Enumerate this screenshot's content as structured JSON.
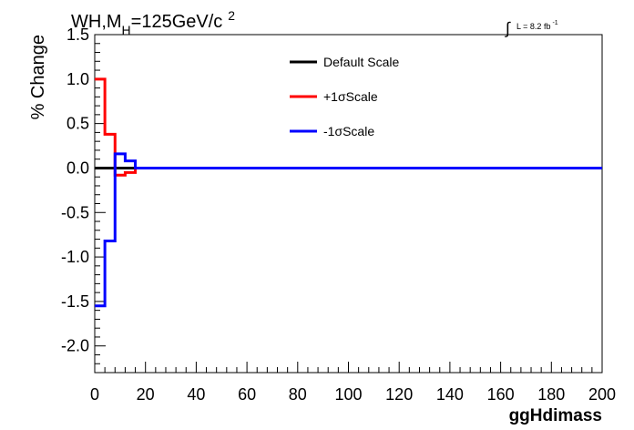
{
  "chart_data": {
    "type": "line",
    "title": {
      "prefix": "WH,M",
      "sub": "H",
      "mid": "=125GeV/c",
      "sup": "2"
    },
    "luminosity": {
      "text": "L = 8.2 fb",
      "sup": "-1"
    },
    "xlabel": "ggHdimass",
    "ylabel": "% Change",
    "xlim": [
      0,
      200
    ],
    "ylim": [
      -2.3,
      1.5
    ],
    "xticks": [
      0,
      20,
      40,
      60,
      80,
      100,
      120,
      140,
      160,
      180,
      200
    ],
    "xtick_labels": [
      "0",
      "20",
      "40",
      "60",
      "80",
      "100",
      "120",
      "140",
      "160",
      "180",
      "200"
    ],
    "yticks": [
      1.5,
      1.0,
      0.5,
      0.0,
      -0.5,
      -1.0,
      -1.5,
      -2.0
    ],
    "ytick_labels": [
      "1.5",
      "1.0",
      "0.5",
      "0.0",
      "-0.5",
      "-1.0",
      "-1.5",
      "-2.0"
    ],
    "legend_position": "top-right",
    "series": [
      {
        "name": "Default Scale",
        "color": "#000000",
        "step_edges": [
          0,
          200
        ],
        "values": [
          0.0
        ]
      },
      {
        "name": "+1σScale",
        "color": "#ff0000",
        "step_edges": [
          0,
          4,
          8,
          12,
          16,
          200
        ],
        "values": [
          1.0,
          0.38,
          -0.08,
          -0.05,
          0.0
        ]
      },
      {
        "name": "-1σScale",
        "color": "#0000ff",
        "step_edges": [
          0,
          4,
          8,
          12,
          16,
          200
        ],
        "values": [
          -1.55,
          -0.82,
          0.16,
          0.08,
          0.0
        ]
      }
    ]
  }
}
